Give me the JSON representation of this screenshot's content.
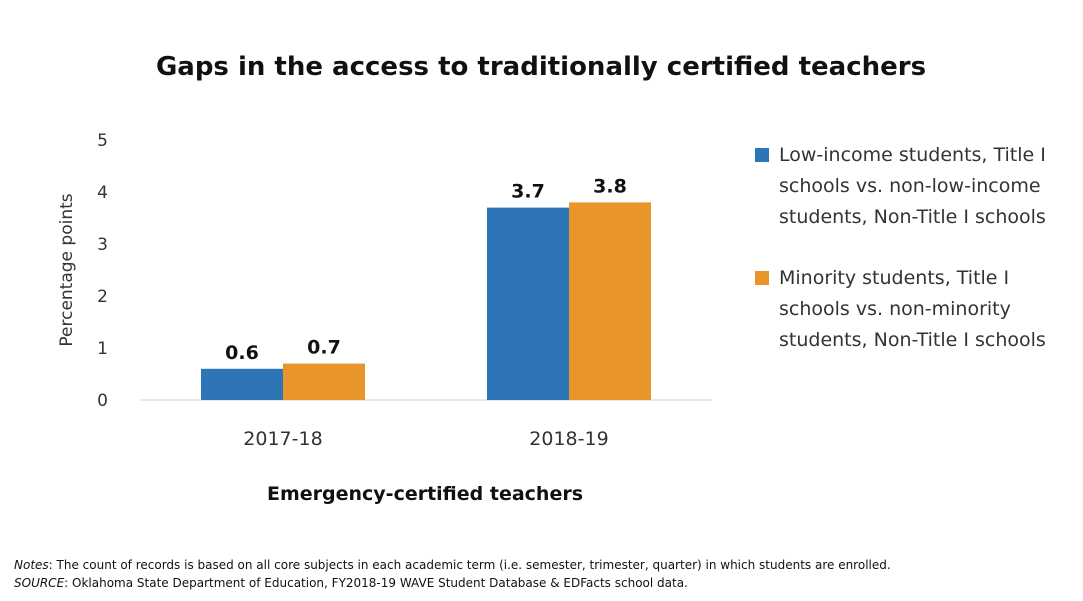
{
  "chart_data": {
    "type": "bar",
    "title": "Gaps in the access to traditionally certified teachers",
    "xlabel": "Emergency-certified teachers",
    "ylabel": "Percentage points",
    "categories": [
      "2017-18",
      "2018-19"
    ],
    "ylim": [
      0,
      5
    ],
    "yticks": [
      0,
      1,
      2,
      3,
      4,
      5
    ],
    "series": [
      {
        "name": "Low-income students, Title I schools vs. non-low-income students, Non-Title I schools",
        "values": [
          0.6,
          3.7
        ],
        "color": "#2E75B6"
      },
      {
        "name": "Minority students, Title I schools vs. non-minority students, Non-Title I schools",
        "values": [
          0.7,
          3.8
        ],
        "color": "#E8962B"
      }
    ],
    "data_labels": [
      [
        "0.6",
        "3.7"
      ],
      [
        "0.7",
        "3.8"
      ]
    ],
    "legend": "right",
    "grid": false
  },
  "notes": {
    "label": "Notes",
    "text": ": The count of records is based on all core subjects in each academic term (i.e. semester, trimester, quarter) in which students are enrolled.",
    "source_label": "SOURCE",
    "source_text": ": Oklahoma State Department of Education, FY2018-19 WAVE Student Database & EDFacts school data."
  }
}
